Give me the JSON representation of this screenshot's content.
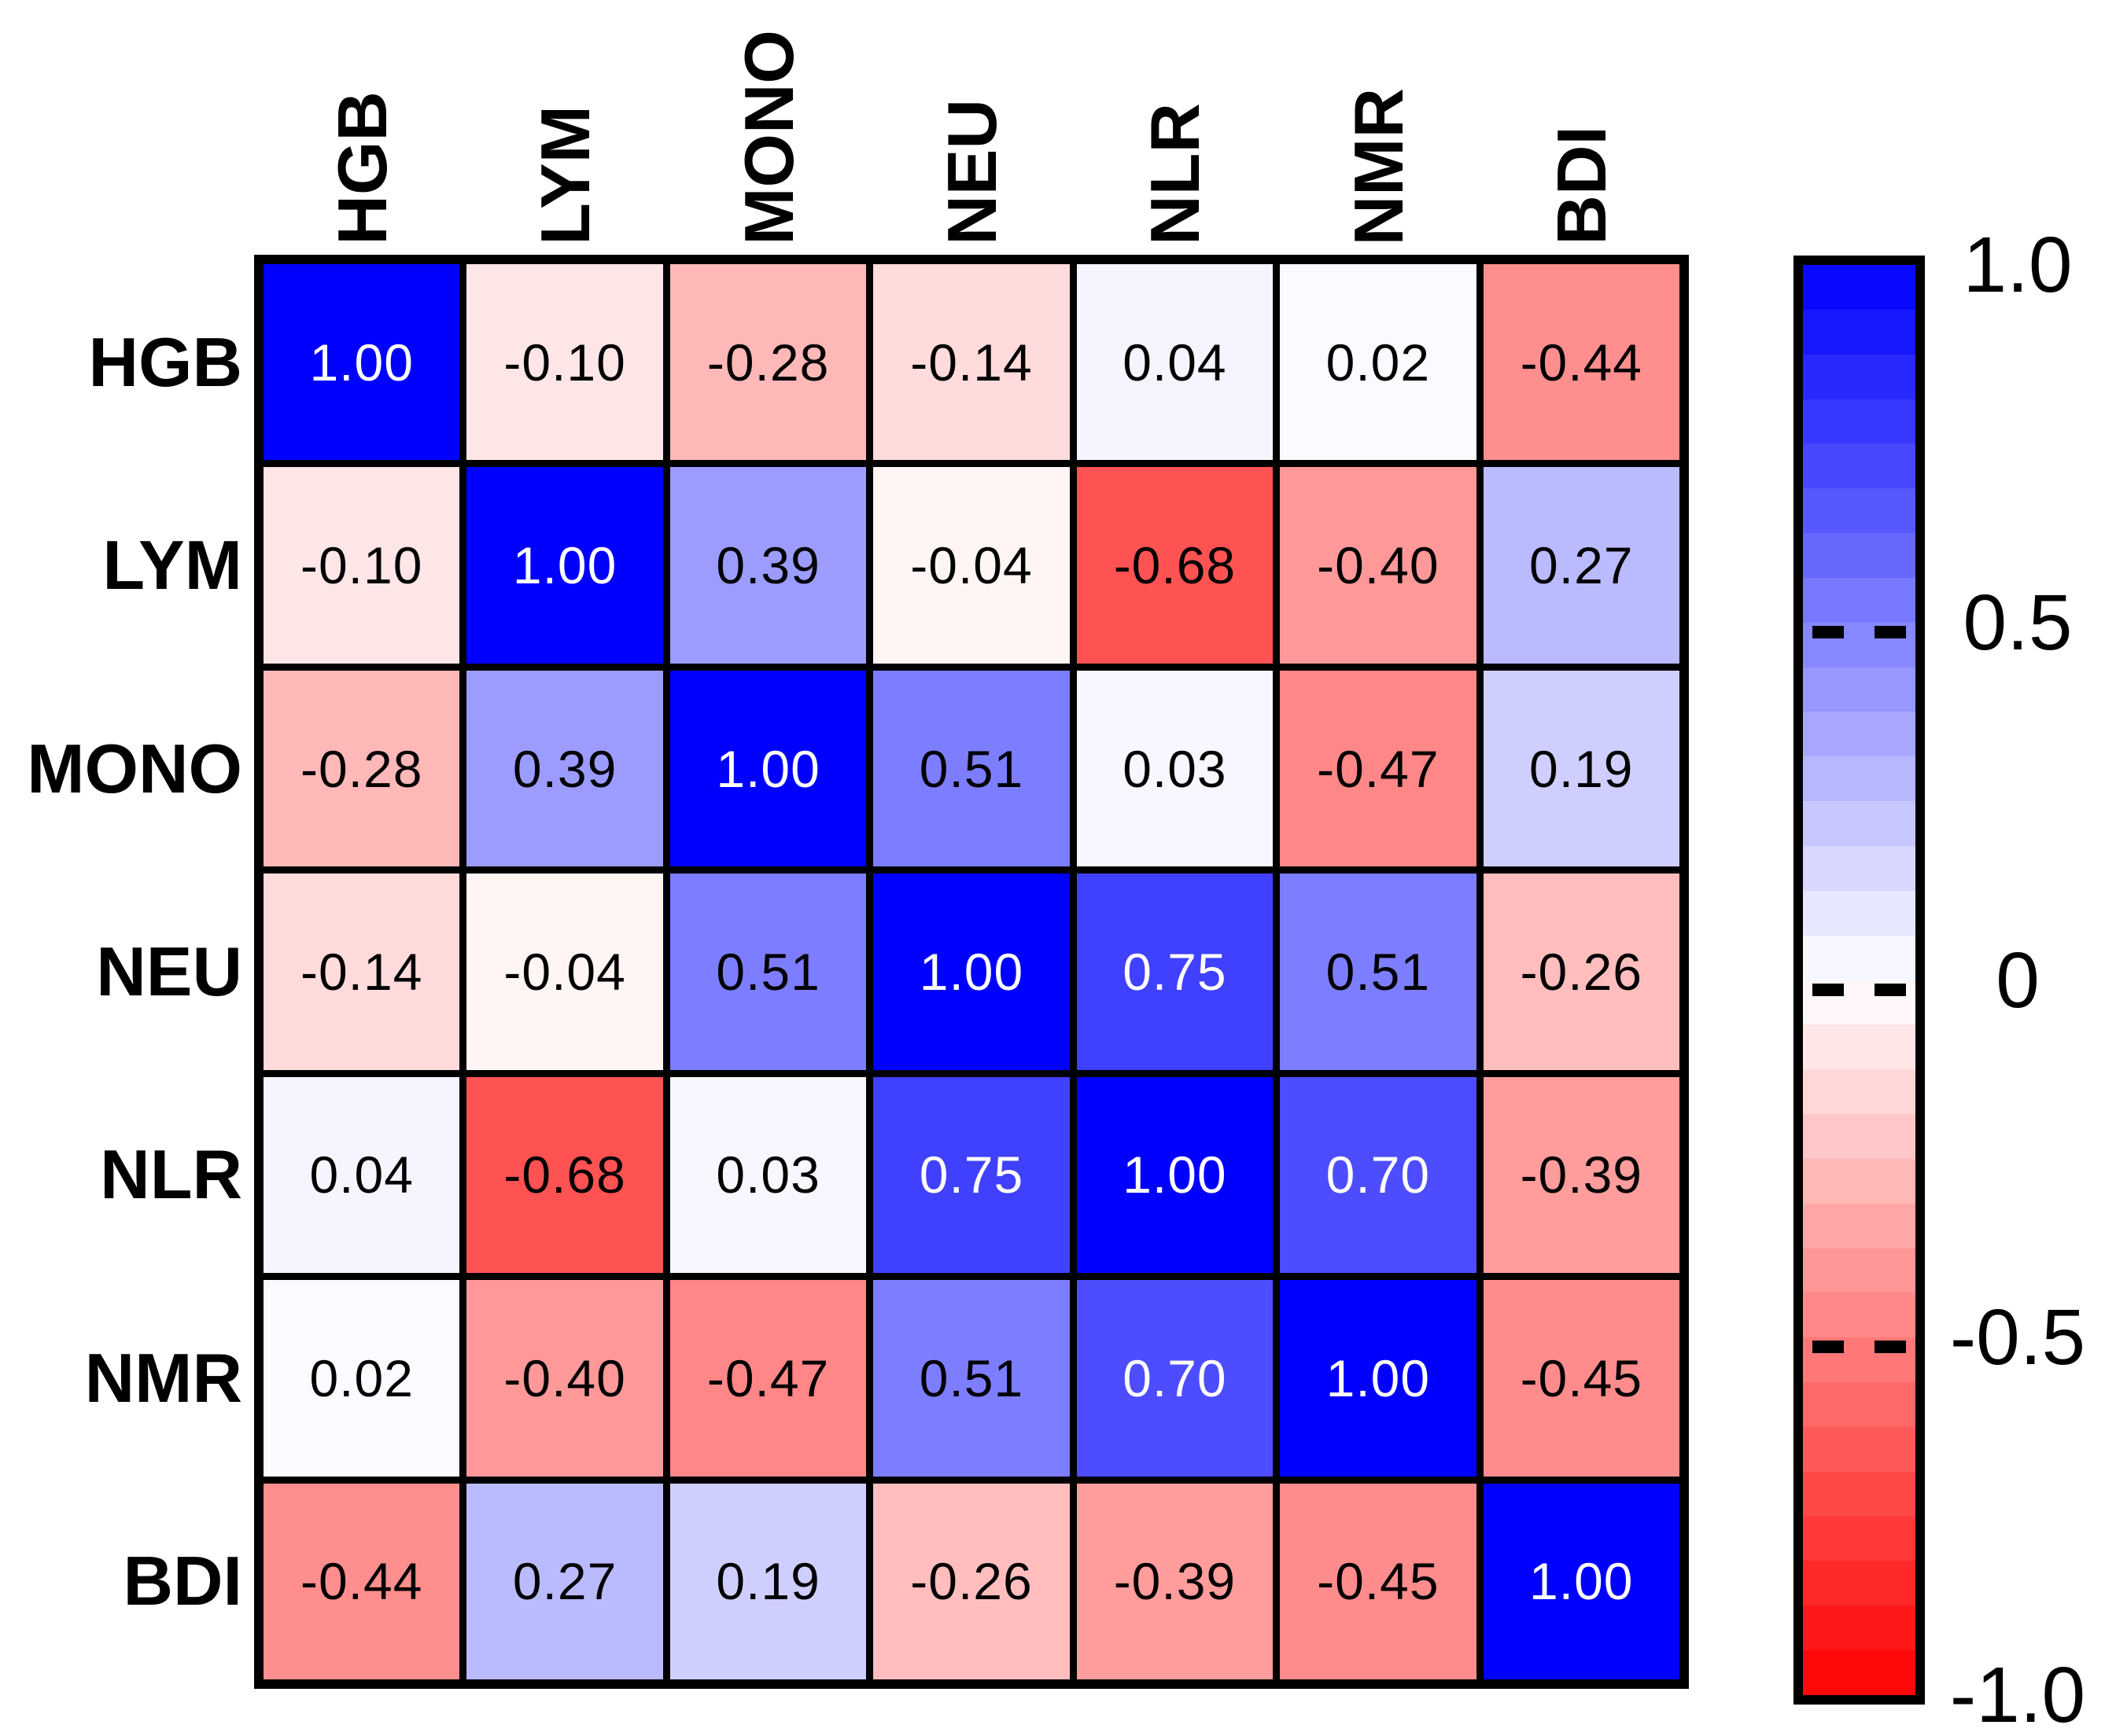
{
  "chart_data": {
    "type": "heatmap",
    "subtype": "correlation-matrix",
    "title": "",
    "rows": [
      "HGB",
      "LYM",
      "MONO",
      "NEU",
      "NLR",
      "NMR",
      "BDI"
    ],
    "columns": [
      "HGB",
      "LYM",
      "MONO",
      "NEU",
      "NLR",
      "NMR",
      "BDI"
    ],
    "matrix": [
      [
        1.0,
        -0.1,
        -0.28,
        -0.14,
        0.04,
        0.02,
        -0.44
      ],
      [
        -0.1,
        1.0,
        0.39,
        -0.04,
        -0.68,
        -0.4,
        0.27
      ],
      [
        -0.28,
        0.39,
        1.0,
        0.51,
        0.03,
        -0.47,
        0.19
      ],
      [
        -0.14,
        -0.04,
        0.51,
        1.0,
        0.75,
        0.51,
        -0.26
      ],
      [
        0.04,
        -0.68,
        0.03,
        0.75,
        1.0,
        0.7,
        -0.39
      ],
      [
        0.02,
        -0.4,
        -0.47,
        0.51,
        0.7,
        1.0,
        -0.45
      ],
      [
        -0.44,
        0.27,
        0.19,
        -0.26,
        -0.39,
        -0.45,
        1.0
      ]
    ],
    "value_range": [
      -1,
      1
    ],
    "cell_label_decimals": 2,
    "white_text_threshold": 0.7,
    "grid_color": "#000000",
    "background": "#ffffff",
    "colormap": {
      "max_color": "#0000ff",
      "mid_color": "#ffffff",
      "min_color": "#ff0000",
      "discrete_bands": 32
    },
    "colorbar": {
      "position": "right",
      "tick_labels": [
        "1.0",
        "0.5",
        "0",
        "-0.5",
        "-1.0"
      ],
      "tick_values": [
        1,
        0.5,
        0,
        -0.5,
        -1
      ]
    }
  }
}
